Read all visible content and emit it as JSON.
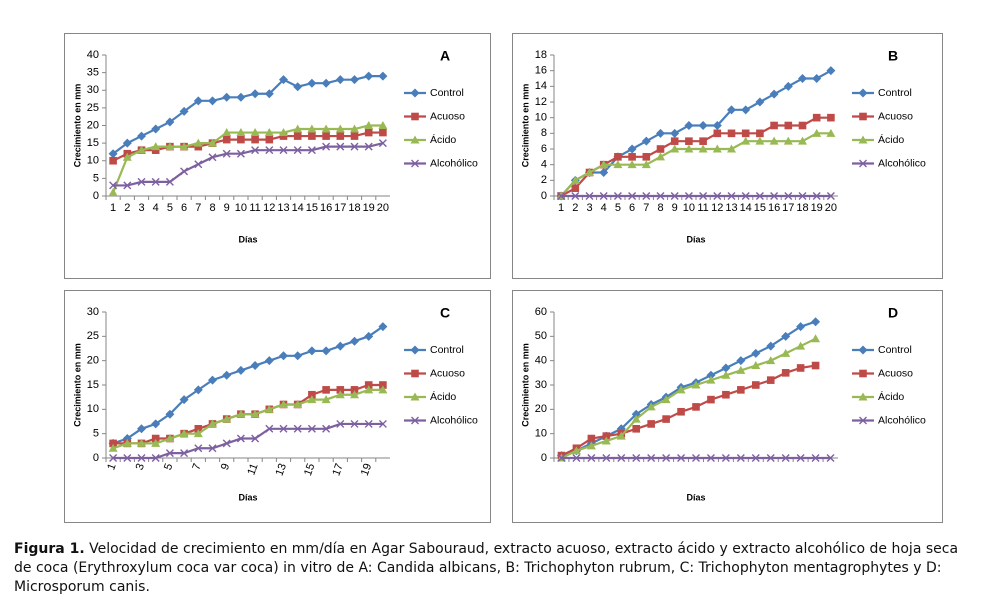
{
  "chart_data": [
    {
      "type": "line",
      "title": "A",
      "ylabel": "Crecimiento en mm",
      "xlabel": "Días",
      "categories": [
        "1",
        "2",
        "3",
        "4",
        "5",
        "6",
        "7",
        "8",
        "9",
        "10",
        "11",
        "12",
        "13",
        "14",
        "15",
        "16",
        "17",
        "18",
        "19",
        "20"
      ],
      "ylim": [
        0,
        40
      ],
      "yticks": [
        0,
        5,
        10,
        15,
        20,
        25,
        30,
        35,
        40
      ],
      "legend": "right",
      "series": [
        {
          "name": "Control",
          "color": "#4a7ebb",
          "values": [
            12,
            15,
            17,
            19,
            21,
            24,
            27,
            27,
            28,
            28,
            29,
            29,
            33,
            31,
            32,
            32,
            33,
            33,
            34,
            34
          ]
        },
        {
          "name": "Acuoso",
          "color": "#be4b48",
          "values": [
            10,
            12,
            13,
            13,
            14,
            14,
            14,
            15,
            16,
            16,
            16,
            16,
            17,
            17,
            17,
            17,
            17,
            17,
            18,
            18
          ]
        },
        {
          "name": "Ácido",
          "color": "#98b954",
          "values": [
            1,
            11,
            13,
            14,
            14,
            14,
            15,
            15,
            18,
            18,
            18,
            18,
            18,
            19,
            19,
            19,
            19,
            19,
            20,
            20
          ]
        },
        {
          "name": "Alcohólico",
          "color": "#7d60a0",
          "values": [
            3,
            3,
            4,
            4,
            4,
            7,
            9,
            11,
            12,
            12,
            13,
            13,
            13,
            13,
            13,
            14,
            14,
            14,
            14,
            15
          ]
        }
      ]
    },
    {
      "type": "line",
      "title": "B",
      "ylabel": "Crecimiento en mm",
      "xlabel": "Días",
      "categories": [
        "1",
        "2",
        "3",
        "4",
        "5",
        "6",
        "7",
        "8",
        "9",
        "10",
        "11",
        "12",
        "13",
        "14",
        "15",
        "16",
        "17",
        "18",
        "19",
        "20"
      ],
      "ylim": [
        0,
        18
      ],
      "yticks": [
        0,
        2,
        4,
        6,
        8,
        10,
        12,
        14,
        16,
        18
      ],
      "legend": "right",
      "series": [
        {
          "name": "Control",
          "color": "#4a7ebb",
          "values": [
            0,
            2,
            3,
            3,
            5,
            6,
            7,
            8,
            8,
            9,
            9,
            9,
            11,
            11,
            12,
            13,
            14,
            15,
            15,
            16
          ]
        },
        {
          "name": "Acuoso",
          "color": "#be4b48",
          "values": [
            0,
            1,
            3,
            4,
            5,
            5,
            5,
            6,
            7,
            7,
            7,
            8,
            8,
            8,
            8,
            9,
            9,
            9,
            10,
            10
          ]
        },
        {
          "name": "Ácido",
          "color": "#98b954",
          "values": [
            0,
            2,
            3,
            4,
            4,
            4,
            4,
            5,
            6,
            6,
            6,
            6,
            6,
            7,
            7,
            7,
            7,
            7,
            8,
            8
          ]
        },
        {
          "name": "Alcohólico",
          "color": "#7d60a0",
          "values": [
            0,
            0,
            0,
            0,
            0,
            0,
            0,
            0,
            0,
            0,
            0,
            0,
            0,
            0,
            0,
            0,
            0,
            0,
            0,
            0
          ]
        }
      ]
    },
    {
      "type": "line",
      "title": "C",
      "ylabel": "Crecimiento en mm",
      "xlabel": "Días",
      "categories": [
        "1",
        null,
        "3",
        null,
        "5",
        null,
        "7",
        null,
        "9",
        null,
        "11",
        null,
        "13",
        null,
        "15",
        null,
        "17",
        null,
        "19",
        null
      ],
      "ylim": [
        0,
        30
      ],
      "yticks": [
        0,
        5,
        10,
        15,
        20,
        25,
        30
      ],
      "legend": "right",
      "series": [
        {
          "name": "Control",
          "color": "#4a7ebb",
          "values": [
            3,
            4,
            6,
            7,
            9,
            12,
            14,
            16,
            17,
            18,
            19,
            20,
            21,
            21,
            22,
            22,
            23,
            24,
            25,
            27
          ]
        },
        {
          "name": "Acuoso",
          "color": "#be4b48",
          "values": [
            3,
            3,
            3,
            4,
            4,
            5,
            6,
            7,
            8,
            9,
            9,
            10,
            11,
            11,
            13,
            14,
            14,
            14,
            15,
            15
          ]
        },
        {
          "name": "Ácido",
          "color": "#98b954",
          "values": [
            2,
            3,
            3,
            3,
            4,
            5,
            5,
            7,
            8,
            9,
            9,
            10,
            11,
            11,
            12,
            12,
            13,
            13,
            14,
            14
          ]
        },
        {
          "name": "Alcohólico",
          "color": "#7d60a0",
          "values": [
            0,
            0,
            0,
            0,
            1,
            1,
            2,
            2,
            3,
            4,
            4,
            6,
            6,
            6,
            6,
            6,
            7,
            7,
            7,
            7
          ]
        }
      ]
    },
    {
      "type": "line",
      "title": "D",
      "ylabel": "Crecimiento en mm",
      "xlabel": "Días",
      "categories": [
        null,
        null,
        null,
        null,
        null,
        null,
        null,
        null,
        null,
        null,
        null,
        null,
        null,
        null,
        null,
        null,
        null,
        null,
        null
      ],
      "ylim": [
        0,
        60
      ],
      "yticks": [
        0,
        10,
        20,
        30,
        40,
        50,
        60
      ],
      "legend": "right",
      "series": [
        {
          "name": "Control",
          "color": "#4a7ebb",
          "values": [
            1,
            3,
            6,
            9,
            12,
            18,
            22,
            25,
            29,
            31,
            34,
            37,
            40,
            43,
            46,
            50,
            54,
            56,
            null
          ]
        },
        {
          "name": "Acuoso",
          "color": "#be4b48",
          "values": [
            1,
            4,
            8,
            9,
            10,
            12,
            14,
            16,
            19,
            21,
            24,
            26,
            28,
            30,
            32,
            35,
            37,
            38,
            null
          ]
        },
        {
          "name": "Ácido",
          "color": "#98b954",
          "values": [
            0,
            3,
            5,
            7,
            9,
            16,
            21,
            24,
            28,
            30,
            32,
            34,
            36,
            38,
            40,
            43,
            46,
            49,
            null
          ]
        },
        {
          "name": "Alcohólico",
          "color": "#7d60a0",
          "values": [
            0,
            0,
            0,
            0,
            0,
            0,
            0,
            0,
            0,
            0,
            0,
            0,
            0,
            0,
            0,
            0,
            0,
            0,
            0
          ]
        }
      ]
    }
  ],
  "caption": {
    "label": "Figura 1.",
    "text": "Velocidad de crecimiento en mm/día en Agar Sabouraud, extracto acuoso, extracto ácido y extracto alcohólico de hoja seca de coca (Erythroxylum coca var coca) in vitro de A: Candida albicans, B: Trichophyton rubrum, C: Trichophyton mentagrophytes y D: Microsporum canis."
  }
}
